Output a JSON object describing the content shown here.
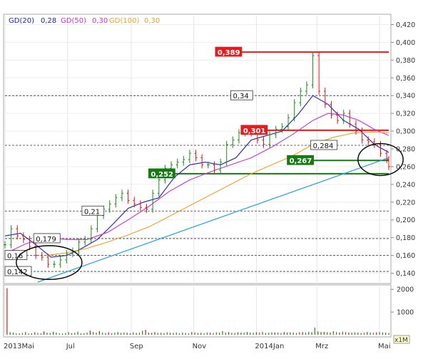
{
  "legend": [
    {
      "label": "GD(20)",
      "value": "0,28",
      "color": "#1e1eb4"
    },
    {
      "label": "GD(50)",
      "value": "0,30",
      "color": "#c832c8"
    },
    {
      "label": "GD(100)",
      "value": "0,30",
      "color": "#f0a028"
    }
  ],
  "chart_data": {
    "type": "line",
    "price_axis": {
      "ylim": [
        0.13,
        0.43
      ],
      "ticks": [
        "0,140",
        "0,160",
        "0,180",
        "0,200",
        "0,220",
        "0,240",
        "0,260",
        "0,280",
        "0,300",
        "0,320",
        "0,340",
        "0,360",
        "0,380",
        "0,400",
        "0,420"
      ]
    },
    "volume_axis": {
      "ylim": [
        0,
        2100
      ],
      "ticks": [
        "1000",
        "2000"
      ],
      "unit_label": "x1M"
    },
    "x_ticks": [
      "2013Mai",
      "Jul",
      "Sep",
      "Nov",
      "2014Jan",
      "Mrz",
      "Mai"
    ],
    "x_tick_days": [
      0,
      61,
      123,
      184,
      245,
      304,
      365
    ],
    "horizontal_levels": [
      {
        "label": "0,389",
        "value": 0.389,
        "style": "solid",
        "color": "#e41c1c",
        "start_day": 205,
        "box": "red"
      },
      {
        "label": "0,34",
        "value": 0.34,
        "style": "dashed",
        "color": "#333333",
        "start_day": 0,
        "box": "outline",
        "box_day": 220
      },
      {
        "label": "0,301",
        "value": 0.301,
        "style": "solid",
        "color": "#e41c1c",
        "start_day": 230,
        "box": "red",
        "line_start": 247
      },
      {
        "label": "0,284",
        "value": 0.284,
        "style": "dashed",
        "color": "#333333",
        "start_day": 0,
        "box": "outline",
        "box_day": 298
      },
      {
        "label": "0,267",
        "value": 0.267,
        "style": "solid",
        "color": "#157a15",
        "start_day": 275,
        "box": "green"
      },
      {
        "label": "0,252",
        "value": 0.252,
        "style": "solid",
        "color": "#157a15",
        "start_day": 140,
        "box": "green"
      },
      {
        "label": "0,21",
        "value": 0.21,
        "style": "dashed",
        "color": "#333333",
        "start_day": 0,
        "box": "outline",
        "box_day": 75
      },
      {
        "label": "0,179",
        "value": 0.179,
        "style": "dashed",
        "color": "#333333",
        "start_day": 0,
        "box": "outline",
        "box_day": 28
      },
      {
        "label": "0,16",
        "value": 0.16,
        "style": "dashed",
        "color": "#333333",
        "start_day": 0,
        "box": "outline",
        "box_day": 0
      },
      {
        "label": "0,142",
        "value": 0.142,
        "style": "dashed",
        "color": "#333333",
        "start_day": 0,
        "box": "outline",
        "box_day": 0
      }
    ],
    "trendline": {
      "color": "#1ea0d8",
      "points": [
        [
          32,
          0.13
        ],
        [
          374,
          0.27
        ]
      ]
    },
    "circles": [
      {
        "center_day": 43,
        "center_value": 0.152,
        "width_days": 64,
        "height_value": 0.038
      },
      {
        "center_day": 366,
        "center_value": 0.268,
        "width_days": 44,
        "height_value": 0.036
      }
    ],
    "price_series": [
      [
        0,
        0.172
      ],
      [
        6,
        0.19
      ],
      [
        12,
        0.182
      ],
      [
        18,
        0.178
      ],
      [
        24,
        0.17
      ],
      [
        30,
        0.16
      ],
      [
        36,
        0.158
      ],
      [
        42,
        0.15
      ],
      [
        48,
        0.15
      ],
      [
        54,
        0.155
      ],
      [
        60,
        0.162
      ],
      [
        66,
        0.165
      ],
      [
        72,
        0.175
      ],
      [
        78,
        0.178
      ],
      [
        84,
        0.19
      ],
      [
        90,
        0.205
      ],
      [
        96,
        0.212
      ],
      [
        102,
        0.218
      ],
      [
        108,
        0.225
      ],
      [
        114,
        0.23
      ],
      [
        120,
        0.222
      ],
      [
        126,
        0.218
      ],
      [
        132,
        0.214
      ],
      [
        138,
        0.212
      ],
      [
        144,
        0.23
      ],
      [
        150,
        0.245
      ],
      [
        156,
        0.258
      ],
      [
        162,
        0.262
      ],
      [
        168,
        0.265
      ],
      [
        174,
        0.268
      ],
      [
        180,
        0.275
      ],
      [
        186,
        0.27
      ],
      [
        192,
        0.262
      ],
      [
        198,
        0.262
      ],
      [
        204,
        0.256
      ],
      [
        210,
        0.265
      ],
      [
        216,
        0.285
      ],
      [
        222,
        0.29
      ],
      [
        228,
        0.298
      ],
      [
        234,
        0.302
      ],
      [
        240,
        0.298
      ],
      [
        246,
        0.29
      ],
      [
        252,
        0.285
      ],
      [
        258,
        0.296
      ],
      [
        264,
        0.302
      ],
      [
        270,
        0.305
      ],
      [
        276,
        0.315
      ],
      [
        282,
        0.332
      ],
      [
        288,
        0.345
      ],
      [
        294,
        0.352
      ],
      [
        300,
        0.385
      ],
      [
        306,
        0.345
      ],
      [
        312,
        0.33
      ],
      [
        318,
        0.318
      ],
      [
        324,
        0.312
      ],
      [
        330,
        0.32
      ],
      [
        336,
        0.308
      ],
      [
        342,
        0.3
      ],
      [
        348,
        0.29
      ],
      [
        354,
        0.288
      ],
      [
        360,
        0.285
      ],
      [
        366,
        0.275
      ],
      [
        372,
        0.268
      ],
      [
        374,
        0.26
      ]
    ],
    "series": [
      {
        "name": "GD(20)",
        "color": "#1e1eb4",
        "values": [
          [
            0,
            0.182
          ],
          [
            15,
            0.185
          ],
          [
            30,
            0.172
          ],
          [
            45,
            0.158
          ],
          [
            60,
            0.16
          ],
          [
            75,
            0.168
          ],
          [
            90,
            0.178
          ],
          [
            105,
            0.195
          ],
          [
            120,
            0.213
          ],
          [
            135,
            0.22
          ],
          [
            150,
            0.225
          ],
          [
            165,
            0.248
          ],
          [
            180,
            0.262
          ],
          [
            195,
            0.265
          ],
          [
            210,
            0.262
          ],
          [
            225,
            0.27
          ],
          [
            240,
            0.29
          ],
          [
            255,
            0.295
          ],
          [
            270,
            0.3
          ],
          [
            285,
            0.318
          ],
          [
            300,
            0.34
          ],
          [
            315,
            0.33
          ],
          [
            330,
            0.312
          ],
          [
            345,
            0.302
          ],
          [
            360,
            0.285
          ],
          [
            374,
            0.276
          ]
        ]
      },
      {
        "name": "GD(50)",
        "color": "#c832c8",
        "values": [
          [
            0,
            0.162
          ],
          [
            20,
            0.173
          ],
          [
            40,
            0.18
          ],
          [
            60,
            0.178
          ],
          [
            80,
            0.178
          ],
          [
            100,
            0.186
          ],
          [
            120,
            0.2
          ],
          [
            140,
            0.215
          ],
          [
            160,
            0.232
          ],
          [
            180,
            0.245
          ],
          [
            200,
            0.254
          ],
          [
            220,
            0.262
          ],
          [
            240,
            0.27
          ],
          [
            260,
            0.282
          ],
          [
            280,
            0.296
          ],
          [
            300,
            0.312
          ],
          [
            315,
            0.32
          ],
          [
            330,
            0.318
          ],
          [
            345,
            0.312
          ],
          [
            360,
            0.302
          ],
          [
            374,
            0.295
          ]
        ]
      },
      {
        "name": "GD(100)",
        "color": "#f0a028",
        "values": [
          [
            40,
            0.16
          ],
          [
            60,
            0.163
          ],
          [
            80,
            0.168
          ],
          [
            100,
            0.175
          ],
          [
            120,
            0.183
          ],
          [
            140,
            0.192
          ],
          [
            160,
            0.204
          ],
          [
            180,
            0.216
          ],
          [
            200,
            0.228
          ],
          [
            220,
            0.24
          ],
          [
            240,
            0.252
          ],
          [
            260,
            0.262
          ],
          [
            280,
            0.272
          ],
          [
            300,
            0.285
          ],
          [
            320,
            0.293
          ],
          [
            340,
            0.298
          ],
          [
            360,
            0.299
          ],
          [
            374,
            0.298
          ]
        ]
      }
    ],
    "volume": [
      [
        2,
        2050
      ],
      [
        5,
        120
      ],
      [
        8,
        90
      ],
      [
        11,
        60
      ],
      [
        14,
        70
      ],
      [
        17,
        80
      ],
      [
        20,
        120
      ],
      [
        23,
        60
      ],
      [
        26,
        70
      ],
      [
        29,
        110
      ],
      [
        32,
        80
      ],
      [
        35,
        60
      ],
      [
        38,
        150
      ],
      [
        41,
        90
      ],
      [
        44,
        80
      ],
      [
        47,
        130
      ],
      [
        50,
        100
      ],
      [
        53,
        70
      ],
      [
        56,
        60
      ],
      [
        59,
        80
      ],
      [
        62,
        120
      ],
      [
        65,
        70
      ],
      [
        68,
        90
      ],
      [
        71,
        140
      ],
      [
        74,
        60
      ],
      [
        77,
        80
      ],
      [
        80,
        100
      ],
      [
        83,
        180
      ],
      [
        86,
        120
      ],
      [
        89,
        90
      ],
      [
        92,
        160
      ],
      [
        95,
        100
      ],
      [
        98,
        80
      ],
      [
        101,
        110
      ],
      [
        104,
        70
      ],
      [
        107,
        90
      ],
      [
        110,
        120
      ],
      [
        113,
        80
      ],
      [
        116,
        100
      ],
      [
        119,
        90
      ],
      [
        122,
        70
      ],
      [
        125,
        110
      ],
      [
        128,
        80
      ],
      [
        131,
        90
      ],
      [
        134,
        180
      ],
      [
        137,
        220
      ],
      [
        140,
        100
      ],
      [
        143,
        90
      ],
      [
        146,
        120
      ],
      [
        149,
        80
      ],
      [
        152,
        90
      ],
      [
        155,
        70
      ],
      [
        158,
        110
      ],
      [
        161,
        90
      ],
      [
        164,
        80
      ],
      [
        167,
        100
      ],
      [
        170,
        70
      ],
      [
        173,
        90
      ],
      [
        176,
        80
      ],
      [
        179,
        60
      ],
      [
        182,
        120
      ],
      [
        185,
        100
      ],
      [
        188,
        80
      ],
      [
        191,
        90
      ],
      [
        194,
        70
      ],
      [
        197,
        100
      ],
      [
        200,
        90
      ],
      [
        203,
        80
      ],
      [
        206,
        110
      ],
      [
        209,
        90
      ],
      [
        212,
        160
      ],
      [
        215,
        100
      ],
      [
        218,
        120
      ],
      [
        221,
        90
      ],
      [
        224,
        80
      ],
      [
        227,
        110
      ],
      [
        230,
        100
      ],
      [
        233,
        90
      ],
      [
        236,
        120
      ],
      [
        239,
        100
      ],
      [
        242,
        90
      ],
      [
        245,
        110
      ],
      [
        248,
        100
      ],
      [
        251,
        130
      ],
      [
        254,
        80
      ],
      [
        257,
        90
      ],
      [
        260,
        110
      ],
      [
        263,
        100
      ],
      [
        266,
        90
      ],
      [
        269,
        80
      ],
      [
        272,
        120
      ],
      [
        275,
        100
      ],
      [
        278,
        110
      ],
      [
        281,
        90
      ],
      [
        284,
        80
      ],
      [
        287,
        110
      ],
      [
        290,
        120
      ],
      [
        293,
        100
      ],
      [
        296,
        130
      ],
      [
        299,
        110
      ],
      [
        302,
        320
      ],
      [
        305,
        150
      ],
      [
        308,
        120
      ],
      [
        311,
        130
      ],
      [
        314,
        110
      ],
      [
        317,
        100
      ],
      [
        320,
        160
      ],
      [
        323,
        120
      ],
      [
        326,
        100
      ],
      [
        329,
        140
      ],
      [
        332,
        120
      ],
      [
        335,
        100
      ],
      [
        338,
        90
      ],
      [
        341,
        110
      ],
      [
        344,
        100
      ],
      [
        347,
        80
      ],
      [
        350,
        90
      ],
      [
        353,
        120
      ],
      [
        356,
        100
      ],
      [
        359,
        90
      ],
      [
        362,
        110
      ],
      [
        365,
        120
      ],
      [
        368,
        100
      ],
      [
        371,
        90
      ],
      [
        374,
        80
      ]
    ]
  }
}
